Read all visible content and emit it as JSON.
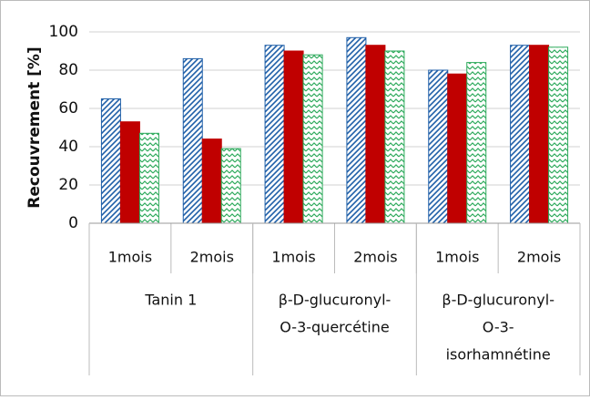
{
  "chart_data": {
    "type": "bar",
    "y_label": "Recouvrement [%]",
    "categories": [
      "1mois",
      "2mois",
      "1mois",
      "2mois",
      "1mois",
      "2mois"
    ],
    "groups": [
      [
        "Tanin 1"
      ],
      [
        "β-D-glucuronyl-",
        "O-3-quercétine"
      ],
      [
        "β-D-glucuronyl-",
        "O-3-",
        "isorhamnétine"
      ]
    ],
    "series": [
      {
        "color": "#1f5fa8",
        "pattern": "hatch",
        "values": [
          65,
          86,
          93,
          97,
          80,
          93
        ]
      },
      {
        "color": "#c00000",
        "pattern": "solid",
        "values": [
          53,
          44,
          90,
          93,
          78,
          93
        ]
      },
      {
        "color": "#2eaa5c",
        "pattern": "zigzag",
        "values": [
          47,
          39,
          88,
          90,
          84,
          92
        ]
      }
    ],
    "ylim": [
      0,
      100
    ],
    "yticks": [
      0,
      20,
      40,
      60,
      80,
      100
    ],
    "grid": true
  }
}
